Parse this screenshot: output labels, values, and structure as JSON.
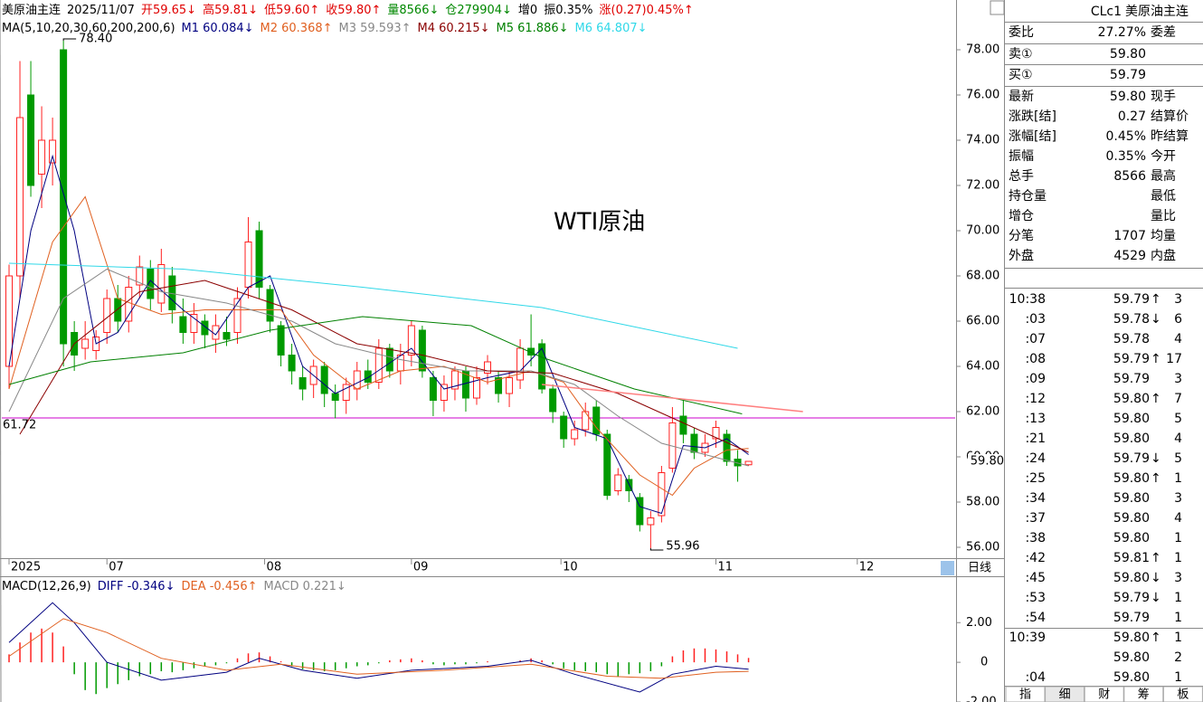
{
  "header": {
    "items": [
      {
        "text": "美原油主连",
        "color": "#000000"
      },
      {
        "text": "2025/11/07",
        "color": "#000000"
      },
      {
        "text": "开59.65↓",
        "color": "#e00000"
      },
      {
        "text": "高59.81↓",
        "color": "#e00000"
      },
      {
        "text": "低59.60↑",
        "color": "#e00000"
      },
      {
        "text": "收59.80↑",
        "color": "#e00000"
      },
      {
        "text": "量8566↓",
        "color": "#008800"
      },
      {
        "text": "仓279904↓",
        "color": "#008800"
      },
      {
        "text": "增0",
        "color": "#000000"
      },
      {
        "text": "振0.35%",
        "color": "#000000"
      },
      {
        "text": "涨(0.27)0.45%↑",
        "color": "#e00000"
      }
    ]
  },
  "chart_data": [
    {
      "type": "candlestick",
      "legend_title": "MA(5,10,20,30,60,200,200,6)",
      "watermark": "WTI原油",
      "x": [
        0,
        1,
        2,
        3,
        4,
        5,
        6,
        7,
        8,
        9,
        10,
        11,
        12,
        13,
        14,
        15,
        16,
        17,
        18,
        19,
        20,
        21,
        22,
        23,
        24,
        25,
        26,
        27,
        28,
        29,
        30,
        31,
        32,
        33,
        34,
        35,
        36,
        37,
        38,
        39,
        40,
        41,
        42,
        43,
        44,
        45,
        46,
        47,
        48,
        49,
        50,
        51,
        52,
        53,
        54,
        55,
        56,
        57,
        58,
        59,
        60,
        61,
        62,
        63,
        64,
        65,
        66,
        67,
        68
      ],
      "open": [
        64,
        68,
        76,
        72.5,
        73,
        78,
        65.5,
        64.8,
        64.7,
        65.5,
        67,
        66,
        67.6,
        68.3,
        66.8,
        68,
        66.2,
        65.5,
        66,
        65.2,
        65.5,
        65.5,
        67.5,
        70,
        67.4,
        65.8,
        64.5,
        63.5,
        63.2,
        64,
        62.8,
        62.5,
        63,
        63.8,
        63.3,
        64.8,
        63.8,
        64.5,
        65.6,
        63.5,
        62.5,
        63,
        63.8,
        62.6,
        63.7,
        63.5,
        62.8,
        63.4,
        64.8,
        65,
        63,
        61.8,
        60.8,
        61.2,
        62.2,
        61,
        58.5,
        59,
        58.2,
        57,
        57.4,
        59.5,
        61.8,
        61,
        60.2,
        60.8,
        61,
        59.9,
        59.65
      ],
      "high": [
        68.5,
        77.5,
        77.5,
        75.5,
        75,
        78.4,
        66,
        66,
        65.6,
        67.4,
        67.6,
        68,
        68.9,
        68.7,
        69.2,
        68.4,
        67,
        66.8,
        66.3,
        66.3,
        66.2,
        67.5,
        70.6,
        70.4,
        67.6,
        66,
        65,
        64,
        64.3,
        64.2,
        63.2,
        63.5,
        64.2,
        64.3,
        65.2,
        65,
        65,
        66,
        65.8,
        63.8,
        63.6,
        64,
        64,
        64,
        64.5,
        63.8,
        63.8,
        65.2,
        66.3,
        65.2,
        63.2,
        62,
        61.6,
        62.4,
        62.5,
        61.2,
        59.5,
        59.2,
        58.4,
        57.6,
        59.6,
        62.2,
        62.5,
        61.3,
        61,
        61.6,
        61.2,
        60.3,
        59.81
      ],
      "low": [
        63,
        67,
        71.5,
        71,
        72,
        64,
        63.8,
        64.3,
        64.3,
        65,
        65.5,
        65.5,
        67,
        66.5,
        66.4,
        65.9,
        65,
        65,
        64.8,
        64.6,
        64.9,
        65,
        67,
        67,
        65.5,
        64,
        63.2,
        62.5,
        62.6,
        62.2,
        61.7,
        61.9,
        62.5,
        63,
        63,
        63.5,
        63.2,
        64,
        63.5,
        61.8,
        62,
        62.5,
        62,
        62.3,
        63.2,
        62.4,
        62.2,
        63,
        64,
        62.8,
        61.5,
        60.4,
        60.5,
        60.9,
        60.7,
        58.1,
        58.3,
        58,
        56.7,
        55.96,
        57.1,
        59.3,
        60.6,
        59.9,
        60,
        60.4,
        59.6,
        58.9,
        59.6
      ],
      "close": [
        68,
        75,
        72,
        74,
        74,
        65,
        64.5,
        65.2,
        65.3,
        67,
        66,
        67.5,
        68.4,
        67,
        68.5,
        66.5,
        65.5,
        66.3,
        65.4,
        65.8,
        65.2,
        67,
        69.5,
        67.5,
        66,
        64.5,
        63.8,
        63,
        64,
        62.8,
        62.5,
        63.2,
        63.8,
        63.3,
        64.8,
        63.8,
        64.5,
        65.8,
        63.8,
        62.5,
        63.2,
        63.8,
        62.6,
        63.5,
        64.2,
        62.8,
        63.5,
        64.8,
        64.5,
        63,
        62,
        60.8,
        61.2,
        62,
        61,
        58.3,
        59.2,
        58.5,
        57,
        57.3,
        59.3,
        61.5,
        61,
        60.2,
        60.6,
        61.3,
        59.8,
        59.6,
        59.8
      ],
      "up_color": "#ff2020",
      "down_color": "#009a00",
      "series": [
        {
          "name": "M1 60.084↓",
          "color": "#000080",
          "x": [
            0,
            2,
            4,
            6,
            8,
            10,
            13,
            16,
            19,
            22,
            24,
            27,
            30,
            33,
            37,
            40,
            44,
            47,
            49,
            52,
            55,
            58,
            60,
            62,
            64,
            66,
            68
          ],
          "values": [
            64,
            70,
            73.3,
            70,
            65,
            65.5,
            67.8,
            66.5,
            65.4,
            67.5,
            68,
            64,
            62.8,
            63.5,
            64.8,
            63,
            63.5,
            63.8,
            64.8,
            61.3,
            60.8,
            57.8,
            57.5,
            60.5,
            60.4,
            60.8,
            60.1
          ]
        },
        {
          "name": "M2 60.368↑",
          "color": "#e06020",
          "x": [
            0,
            4,
            7,
            10,
            14,
            18,
            22,
            25,
            28,
            32,
            36,
            40,
            44,
            48,
            51,
            54,
            58,
            61,
            63,
            66,
            68
          ],
          "values": [
            63,
            69.5,
            71.5,
            67,
            66.3,
            66.5,
            66.5,
            66.5,
            64.5,
            63,
            63.8,
            64,
            63.3,
            63.8,
            63.3,
            61.3,
            59.2,
            58.3,
            59.5,
            60.3,
            60.37
          ]
        },
        {
          "name": "M3 59.593↑",
          "color": "#888888",
          "x": [
            0,
            5,
            9,
            14,
            20,
            26,
            30,
            36,
            42,
            48,
            52,
            56,
            60,
            64,
            68
          ],
          "values": [
            62,
            67,
            68.3,
            67.3,
            66.8,
            66,
            65,
            64.3,
            63.8,
            63.8,
            63.2,
            61.8,
            60.6,
            60.1,
            59.6
          ]
        },
        {
          "name": "M4 60.215↓",
          "color": "#8b0000",
          "x": [
            1,
            6,
            12,
            18,
            26,
            32,
            38,
            44,
            50,
            56,
            62,
            68
          ],
          "values": [
            61,
            65,
            67.3,
            67.8,
            66.5,
            65,
            64.5,
            63.8,
            63.7,
            62.8,
            61.5,
            60.2
          ]
        },
        {
          "name": "M5 61.886↓",
          "color": "#008000",
          "x": [
            0,
            7.5,
            16,
            24,
            32.5,
            42.5,
            49,
            57.5,
            67.4
          ],
          "values": [
            63.2,
            64.2,
            64.6,
            65.6,
            66.2,
            65.8,
            64.4,
            63,
            61.9
          ]
        },
        {
          "name": "M6 64.807↓",
          "color": "#30d8e8",
          "x": [
            0,
            16,
            32.5,
            49,
            57,
            67
          ],
          "values": [
            68.56,
            68.3,
            67.5,
            66.6,
            65.8,
            64.8
          ]
        }
      ],
      "trendline": {
        "color": "#ff8080",
        "x": [
          49,
          73
        ],
        "values": [
          63.2,
          62
        ]
      },
      "hline": {
        "value": 61.72,
        "label": "61.72",
        "color": "#cc00cc"
      },
      "price_tag": {
        "value": 59.8,
        "label": "59.80",
        "color": "#e00000"
      },
      "extremes": [
        {
          "value": 78.4,
          "label": "78.40",
          "field": "high"
        },
        {
          "value": 55.96,
          "label": "55.96",
          "field": "low"
        }
      ],
      "xlim": [
        -0.5,
        87
      ],
      "ylim": [
        55.56,
        80.04
      ],
      "xticks": [
        {
          "value": 0,
          "label": "2025"
        },
        {
          "value": 9,
          "label": "07"
        },
        {
          "value": 23.5,
          "label": "08"
        },
        {
          "value": 37,
          "label": "09"
        },
        {
          "value": 50.75,
          "label": "10"
        },
        {
          "value": 65,
          "label": "11"
        },
        {
          "value": 78,
          "label": "12"
        }
      ],
      "yticks": [
        {
          "value": 56,
          "label": "56.00"
        },
        {
          "value": 58,
          "label": "58.00"
        },
        {
          "value": 60,
          "label": "60.00"
        },
        {
          "value": 62,
          "label": "62.00"
        },
        {
          "value": 64,
          "label": "64.00"
        },
        {
          "value": 66,
          "label": "66.00"
        },
        {
          "value": 68,
          "label": "68.00"
        },
        {
          "value": 70,
          "label": "70.00"
        },
        {
          "value": 72,
          "label": "72.00"
        },
        {
          "value": 74,
          "label": "74.00"
        },
        {
          "value": 76,
          "label": "76.00"
        },
        {
          "value": 78,
          "label": "78.00"
        }
      ]
    },
    {
      "type": "macd",
      "title": "MACD(12,26,9)",
      "name": "MACD 0.221↓",
      "name_color": "#888888",
      "up_color": "#ff2020",
      "down_color": "#009a00",
      "x": [
        0,
        1,
        2,
        3,
        4,
        5,
        6,
        7,
        8,
        9,
        10,
        11,
        12,
        13,
        14,
        15,
        16,
        17,
        18,
        19,
        20,
        21,
        22,
        23,
        24,
        25,
        26,
        27,
        28,
        29,
        30,
        31,
        32,
        33,
        34,
        35,
        36,
        37,
        38,
        39,
        40,
        41,
        42,
        43,
        44,
        45,
        46,
        47,
        48,
        49,
        50,
        51,
        52,
        53,
        54,
        55,
        56,
        57,
        58,
        59,
        60,
        61,
        62,
        63,
        64,
        65,
        66,
        67,
        68
      ],
      "values": [
        0.4,
        1,
        1.5,
        1.7,
        1.5,
        0.8,
        -0.6,
        -1.4,
        -1.6,
        -1.3,
        -1.1,
        -0.9,
        -0.7,
        -0.6,
        -0.45,
        -0.5,
        -0.4,
        -0.3,
        -0.2,
        -0.15,
        -0.05,
        0.2,
        0.45,
        0.5,
        0.3,
        0.05,
        -0.2,
        -0.35,
        -0.4,
        -0.45,
        -0.4,
        -0.3,
        -0.2,
        -0.15,
        -0.05,
        0.1,
        0.15,
        0.2,
        0.1,
        -0.1,
        -0.15,
        -0.1,
        -0.1,
        -0.05,
        0.05,
        0,
        0,
        0.1,
        0.2,
        0.1,
        -0.1,
        -0.3,
        -0.4,
        -0.45,
        -0.5,
        -0.6,
        -0.7,
        -0.6,
        -0.55,
        -0.45,
        -0.2,
        0.3,
        0.6,
        0.7,
        0.7,
        0.65,
        0.55,
        0.4,
        0.221
      ],
      "series": [
        {
          "name": "DIFF -0.346↓",
          "color": "#000080",
          "x": [
            0,
            4,
            6,
            9,
            14,
            20,
            23,
            27,
            32,
            37,
            44,
            48,
            52,
            58,
            61,
            65,
            68
          ],
          "values": [
            1,
            3,
            2,
            0,
            -0.9,
            -0.5,
            0.2,
            -0.4,
            -0.8,
            -0.4,
            -0.2,
            0.1,
            -0.6,
            -1.5,
            -0.6,
            -0.2,
            -0.346
          ]
        },
        {
          "name": "DEA -0.456↑",
          "color": "#e06020",
          "x": [
            0,
            5,
            9,
            14,
            20,
            25,
            32,
            40,
            48,
            55,
            60,
            65,
            68
          ],
          "values": [
            0.3,
            2.2,
            1.5,
            0.2,
            -0.4,
            -0.1,
            -0.6,
            -0.4,
            -0.1,
            -0.7,
            -0.8,
            -0.5,
            -0.456
          ]
        }
      ],
      "xlim": [
        -0.5,
        87
      ],
      "ylim": [
        -2,
        4.2
      ],
      "yticks": [
        {
          "value": -2,
          "label": "-2.00"
        },
        0,
        {
          "value": 2,
          "label": "2.00"
        }
      ]
    }
  ],
  "period": "日线",
  "quote": {
    "symbol": "CLc1",
    "name": "美原油主连",
    "rows": [
      {
        "label": "委比",
        "value": "27.27%",
        "color": "#e00000",
        "label2": "委差"
      },
      {
        "label": "卖①",
        "value": "59.80",
        "color": "#e00000"
      },
      {
        "label": "买①",
        "value": "59.79",
        "color": "#e00000"
      },
      {
        "label": "最新",
        "value": "59.80",
        "color": "#e00000",
        "label2": "现手"
      },
      {
        "label": "涨跌[结]",
        "value": "0.27",
        "color": "#e00000",
        "label2": "结算价"
      },
      {
        "label": "涨幅[结]",
        "value": "0.45%",
        "color": "#e00000",
        "label2": "昨结算"
      },
      {
        "label": "振幅",
        "value": "0.35%",
        "color": "#000000",
        "label2": "今开"
      },
      {
        "label": "总手",
        "value": "8566",
        "color": "#000000",
        "label2": "最高"
      },
      {
        "label": "持仓量",
        "label2": "最低"
      },
      {
        "label": "增仓",
        "label2": "量比"
      },
      {
        "label": "分笔",
        "value": "1707",
        "color": "#000000",
        "label2": "均量"
      },
      {
        "label": "外盘",
        "value": "4529",
        "color": "#e00000",
        "label2": "内盘"
      }
    ]
  },
  "ticks": {
    "rows": [
      {
        "time": "10:38",
        "price": "59.79",
        "dir": "↑",
        "vol": "3",
        "color": "#008800"
      },
      {
        "time": ":03",
        "price": "59.78",
        "dir": "↓",
        "vol": "6",
        "color": "#008800"
      },
      {
        "time": ":07",
        "price": "59.78",
        "vol": "4",
        "color": "#008800"
      },
      {
        "time": ":08",
        "price": "59.79",
        "dir": "↑",
        "vol": "17",
        "color": "#e00000"
      },
      {
        "time": ":09",
        "price": "59.79",
        "vol": "3",
        "color": "#e00000"
      },
      {
        "time": ":12",
        "price": "59.80",
        "dir": "↑",
        "vol": "7",
        "color": "#e00000"
      },
      {
        "time": ":13",
        "price": "59.80",
        "vol": "5",
        "color": "#e00000"
      },
      {
        "time": ":21",
        "price": "59.80",
        "vol": "4",
        "color": "#e00000"
      },
      {
        "time": ":24",
        "price": "59.79",
        "dir": "↓",
        "vol": "5",
        "color": "#008800"
      },
      {
        "time": ":25",
        "price": "59.80",
        "dir": "↑",
        "vol": "1",
        "color": "#e00000"
      },
      {
        "time": ":34",
        "price": "59.80",
        "vol": "3",
        "color": "#e00000"
      },
      {
        "time": ":37",
        "price": "59.80",
        "vol": "4",
        "color": "#008800"
      },
      {
        "time": ":38",
        "price": "59.80",
        "vol": "1",
        "color": "#008800"
      },
      {
        "time": ":42",
        "price": "59.81",
        "dir": "↑",
        "vol": "1",
        "color": "#e00000"
      },
      {
        "time": ":45",
        "price": "59.80",
        "dir": "↓",
        "vol": "3",
        "color": "#008800"
      },
      {
        "time": ":53",
        "price": "59.79",
        "dir": "↓",
        "vol": "1",
        "color": "#008800"
      },
      {
        "time": ":54",
        "price": "59.79",
        "vol": "1",
        "color": "#008800"
      },
      {
        "time": "10:39",
        "price": "59.80",
        "dir": "↑",
        "vol": "1",
        "color": "#e00000"
      },
      {
        "time": null,
        "price": "59.80",
        "vol": "2",
        "color": "#e00000"
      },
      {
        "time": ":04",
        "price": "59.80",
        "vol": "1",
        "color": "#e00000"
      }
    ]
  },
  "tabs": [
    "指",
    "细",
    "财",
    "筹",
    "板"
  ]
}
